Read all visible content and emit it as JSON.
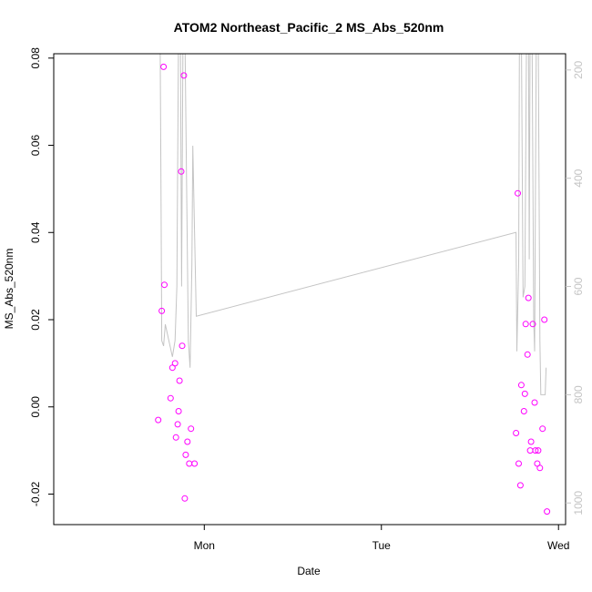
{
  "chart_data": {
    "type": "scatter",
    "title": "ATOM2 Northeast_Pacific_2 MS_Abs_520nm",
    "xlabel": "Date",
    "ylabel": "MS_Abs_520nm",
    "xlim": [
      -0.85,
      2.04
    ],
    "ylim": [
      -0.027,
      0.081
    ],
    "x_ticks": [
      {
        "value": 0,
        "label": "Mon"
      },
      {
        "value": 1,
        "label": "Tue"
      },
      {
        "value": 2,
        "label": "Wed"
      }
    ],
    "y_ticks": [
      {
        "value": -0.02,
        "label": "-0.02"
      },
      {
        "value": 0.0,
        "label": "0.00"
      },
      {
        "value": 0.02,
        "label": "0.02"
      },
      {
        "value": 0.04,
        "label": "0.04"
      },
      {
        "value": 0.06,
        "label": "0.06"
      },
      {
        "value": 0.08,
        "label": "0.08"
      }
    ],
    "y2_ticks": [
      {
        "value": 200,
        "label": "200"
      },
      {
        "value": 400,
        "label": "400"
      },
      {
        "value": 600,
        "label": "600"
      },
      {
        "value": 800,
        "label": "800"
      },
      {
        "value": 1000,
        "label": "1000"
      }
    ],
    "y2lim": [
      1040,
      170
    ],
    "colors": {
      "points": "#ff00ff",
      "depth_line": "#c4c4c4",
      "axis": "#000000"
    },
    "series": [
      {
        "marker": "open-circle",
        "color": "#ff00ff",
        "points": [
          {
            "x": -0.26,
            "y": -0.003
          },
          {
            "x": -0.24,
            "y": 0.022
          },
          {
            "x": -0.23,
            "y": 0.078
          },
          {
            "x": -0.225,
            "y": 0.028
          },
          {
            "x": -0.19,
            "y": 0.002
          },
          {
            "x": -0.18,
            "y": 0.009
          },
          {
            "x": -0.165,
            "y": 0.01
          },
          {
            "x": -0.16,
            "y": -0.007
          },
          {
            "x": -0.15,
            "y": -0.004
          },
          {
            "x": -0.145,
            "y": -0.001
          },
          {
            "x": -0.14,
            "y": 0.006
          },
          {
            "x": -0.13,
            "y": 0.054
          },
          {
            "x": -0.125,
            "y": 0.014
          },
          {
            "x": -0.115,
            "y": 0.076
          },
          {
            "x": -0.11,
            "y": -0.021
          },
          {
            "x": -0.105,
            "y": -0.011
          },
          {
            "x": -0.095,
            "y": -0.008
          },
          {
            "x": -0.085,
            "y": -0.013
          },
          {
            "x": -0.075,
            "y": -0.005
          },
          {
            "x": -0.055,
            "y": -0.013
          },
          {
            "x": 1.76,
            "y": -0.006
          },
          {
            "x": 1.77,
            "y": 0.049
          },
          {
            "x": 1.775,
            "y": -0.013
          },
          {
            "x": 1.785,
            "y": -0.018
          },
          {
            "x": 1.79,
            "y": 0.005
          },
          {
            "x": 1.805,
            "y": -0.001
          },
          {
            "x": 1.81,
            "y": 0.003
          },
          {
            "x": 1.815,
            "y": 0.019
          },
          {
            "x": 1.825,
            "y": 0.012
          },
          {
            "x": 1.83,
            "y": 0.025
          },
          {
            "x": 1.84,
            "y": -0.01
          },
          {
            "x": 1.845,
            "y": -0.008
          },
          {
            "x": 1.855,
            "y": 0.019
          },
          {
            "x": 1.865,
            "y": 0.001
          },
          {
            "x": 1.87,
            "y": -0.01
          },
          {
            "x": 1.88,
            "y": -0.013
          },
          {
            "x": 1.885,
            "y": -0.01
          },
          {
            "x": 1.895,
            "y": -0.014
          },
          {
            "x": 1.91,
            "y": -0.005
          },
          {
            "x": 1.92,
            "y": 0.02
          },
          {
            "x": 1.935,
            "y": -0.024
          }
        ]
      },
      {
        "axis": "right",
        "line": "depth-profile",
        "color": "#c4c4c4",
        "points": [
          {
            "x": -0.25,
            "y": 110
          },
          {
            "x": -0.245,
            "y": 400
          },
          {
            "x": -0.24,
            "y": 700
          },
          {
            "x": -0.23,
            "y": 710
          },
          {
            "x": -0.22,
            "y": 670
          },
          {
            "x": -0.18,
            "y": 730
          },
          {
            "x": -0.165,
            "y": 700
          },
          {
            "x": -0.155,
            "y": 600
          },
          {
            "x": -0.145,
            "y": 110
          },
          {
            "x": -0.135,
            "y": 110
          },
          {
            "x": -0.128,
            "y": 600
          },
          {
            "x": -0.12,
            "y": 110
          },
          {
            "x": -0.11,
            "y": 110
          },
          {
            "x": -0.1,
            "y": 400
          },
          {
            "x": -0.09,
            "y": 700
          },
          {
            "x": -0.08,
            "y": 750
          },
          {
            "x": -0.07,
            "y": 560
          },
          {
            "x": -0.065,
            "y": 340
          },
          {
            "x": -0.045,
            "y": 655
          },
          {
            "x": 1.76,
            "y": 500
          },
          {
            "x": 1.765,
            "y": 720
          },
          {
            "x": 1.775,
            "y": 560
          },
          {
            "x": 1.78,
            "y": 110
          },
          {
            "x": 1.79,
            "y": 110
          },
          {
            "x": 1.8,
            "y": 620
          },
          {
            "x": 1.81,
            "y": 600
          },
          {
            "x": 1.82,
            "y": 110
          },
          {
            "x": 1.83,
            "y": 110
          },
          {
            "x": 1.835,
            "y": 550
          },
          {
            "x": 1.84,
            "y": 110
          },
          {
            "x": 1.85,
            "y": 110
          },
          {
            "x": 1.86,
            "y": 660
          },
          {
            "x": 1.865,
            "y": 720
          },
          {
            "x": 1.875,
            "y": 110
          },
          {
            "x": 1.885,
            "y": 110
          },
          {
            "x": 1.895,
            "y": 700
          },
          {
            "x": 1.9,
            "y": 800
          },
          {
            "x": 1.925,
            "y": 800
          },
          {
            "x": 1.93,
            "y": 750
          }
        ]
      }
    ]
  }
}
